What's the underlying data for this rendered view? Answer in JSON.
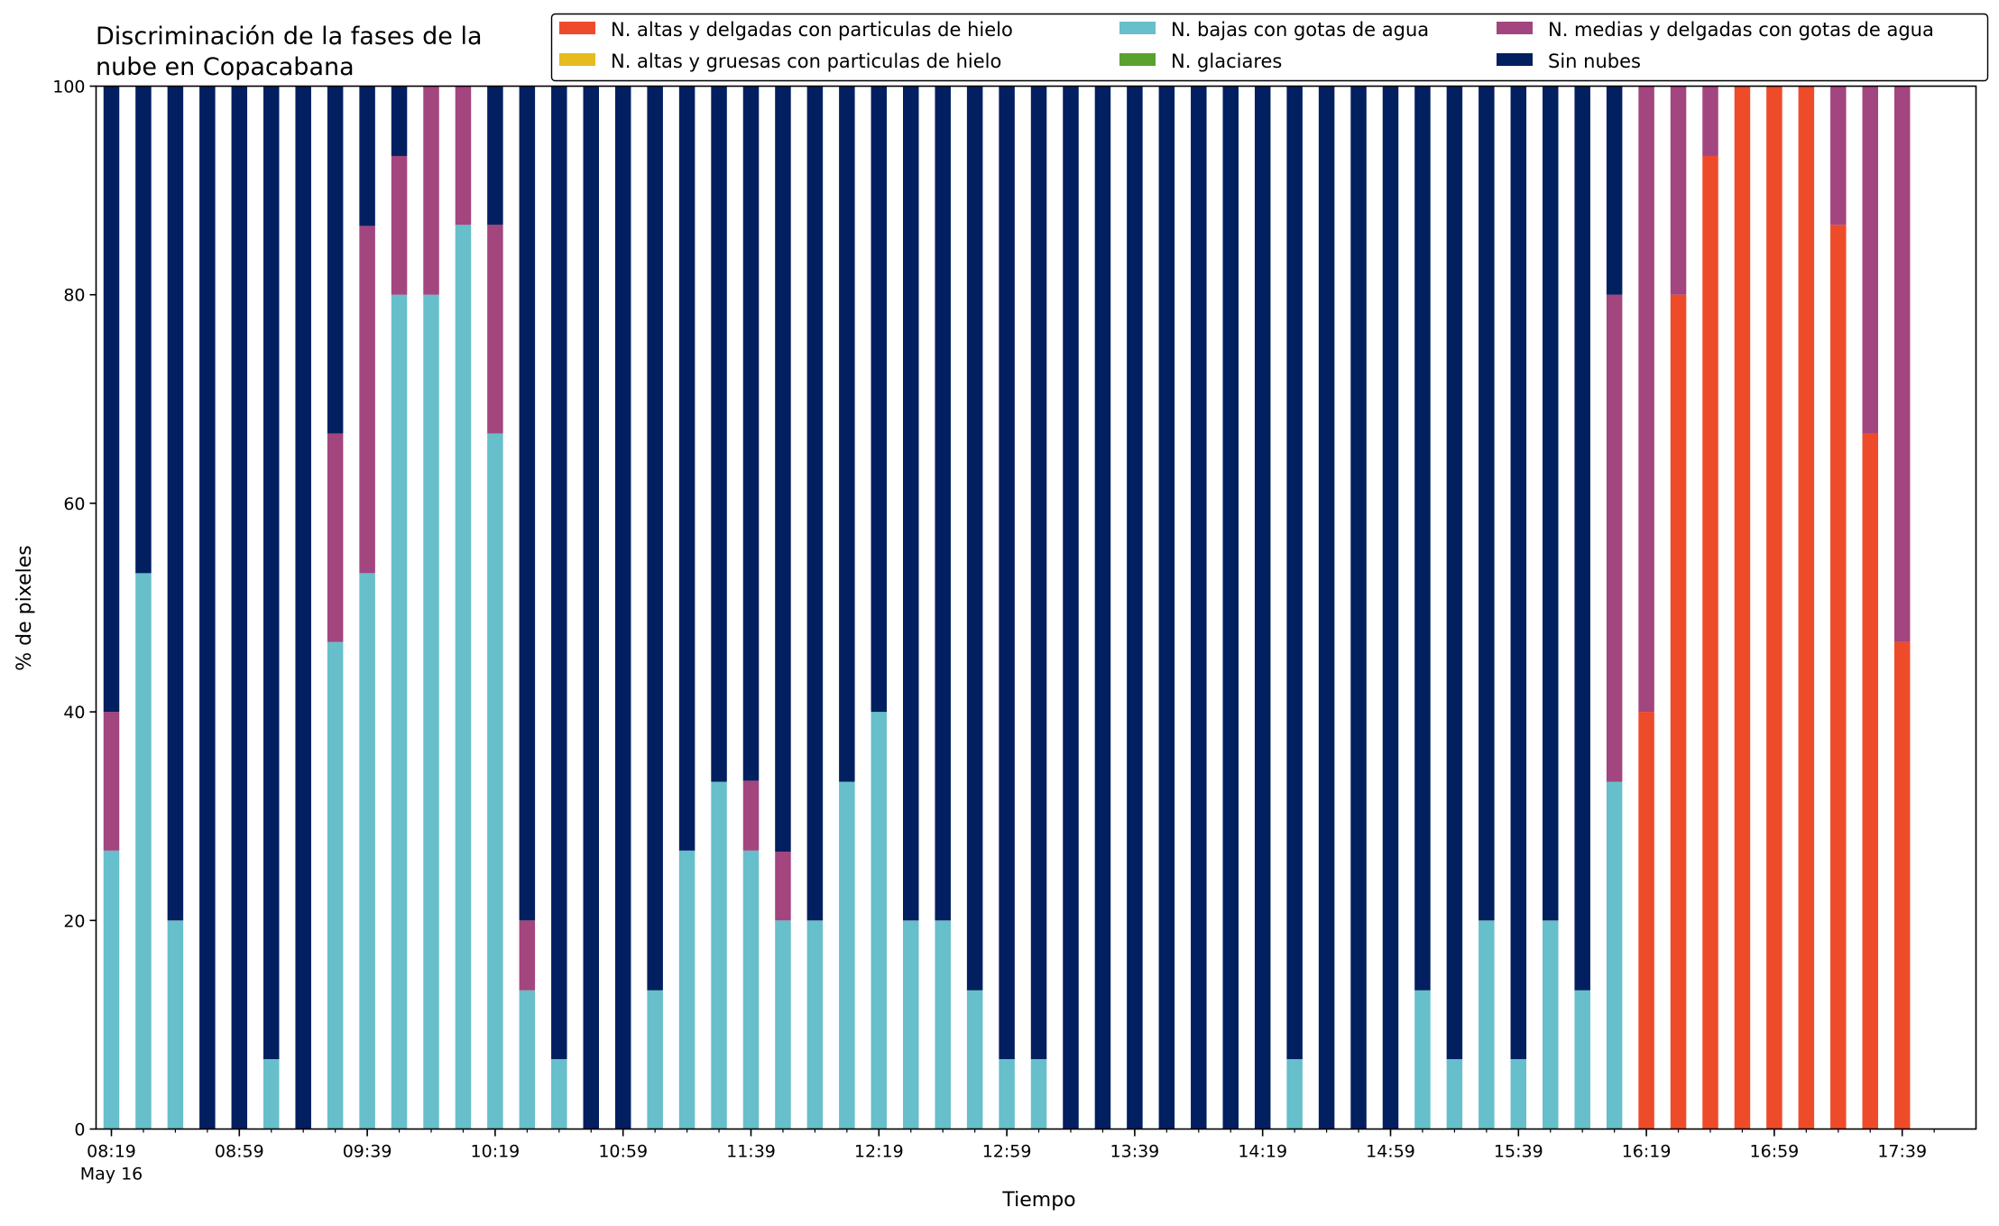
{
  "chart_data": {
    "type": "bar",
    "stacked": true,
    "title_lines": [
      "Discriminación de la fases de la",
      "nube en Copacabana"
    ],
    "xlabel": "Tiempo",
    "ylabel": "% de pixeles",
    "ylim": [
      0,
      100
    ],
    "yticks": [
      "0",
      "20",
      "40",
      "60",
      "80",
      "100"
    ],
    "xtick_labels": [
      "08:19",
      "08:59",
      "09:39",
      "10:19",
      "10:59",
      "11:39",
      "12:19",
      "12:59",
      "13:39",
      "14:19",
      "14:59",
      "15:39",
      "16:19",
      "16:59",
      "17:39"
    ],
    "x_date_label": "May 16",
    "grid": false,
    "legend_position": "top",
    "legend": [
      {
        "label": "N. altas y delgadas con particulas de hielo",
        "color": "#ee4b2b"
      },
      {
        "label": "N. altas y gruesas con particulas de hielo",
        "color": "#e6bb1e"
      },
      {
        "label": "N. bajas con gotas de agua",
        "color": "#66bfca"
      },
      {
        "label": "N. glaciares",
        "color": "#5ba12e"
      },
      {
        "label": "N. medias y delgadas con gotas de agua",
        "color": "#a3457e"
      },
      {
        "label": "Sin nubes",
        "color": "#021f60"
      }
    ],
    "categories": [
      "08:19",
      "08:29",
      "08:39",
      "08:49",
      "08:59",
      "09:09",
      "09:19",
      "09:29",
      "09:39",
      "09:49",
      "09:59",
      "10:09",
      "10:19",
      "10:29",
      "10:39",
      "10:49",
      "10:59",
      "11:09",
      "11:19",
      "11:29",
      "11:39",
      "11:49",
      "11:59",
      "12:09",
      "12:19",
      "12:29",
      "12:39",
      "12:49",
      "12:59",
      "13:09",
      "13:19",
      "13:29",
      "13:39",
      "13:49",
      "13:59",
      "14:09",
      "14:19",
      "14:29",
      "14:39",
      "14:49",
      "14:59",
      "15:09",
      "15:19",
      "15:29",
      "15:39",
      "15:49",
      "15:59",
      "16:09",
      "16:19",
      "16:29",
      "16:39",
      "16:49",
      "16:59",
      "17:09",
      "17:19",
      "17:29",
      "17:39"
    ],
    "series": [
      {
        "name": "N. altas y delgadas con particulas de hielo",
        "color": "#ee4b2b",
        "values": [
          0,
          0,
          0,
          0,
          0,
          0,
          0,
          0,
          0,
          0,
          0,
          0,
          0,
          0,
          0,
          0,
          0,
          0,
          0,
          0,
          0,
          0,
          0,
          0,
          0,
          0,
          0,
          0,
          0,
          0,
          0,
          0,
          0,
          0,
          0,
          0,
          0,
          0,
          0,
          0,
          0,
          0,
          0,
          0,
          0,
          0,
          0,
          0,
          40,
          80,
          93.3,
          100,
          100,
          100,
          86.7,
          66.7,
          46.7
        ]
      },
      {
        "name": "N. altas y gruesas con particulas de hielo",
        "color": "#e6bb1e",
        "values": [
          0,
          0,
          0,
          0,
          0,
          0,
          0,
          0,
          0,
          0,
          0,
          0,
          0,
          0,
          0,
          0,
          0,
          0,
          0,
          0,
          0,
          0,
          0,
          0,
          0,
          0,
          0,
          0,
          0,
          0,
          0,
          0,
          0,
          0,
          0,
          0,
          0,
          0,
          0,
          0,
          0,
          0,
          0,
          0,
          0,
          0,
          0,
          0,
          0,
          0,
          0,
          0,
          0,
          0,
          0,
          0,
          0
        ]
      },
      {
        "name": "N. bajas con gotas de agua",
        "color": "#66bfca",
        "values": [
          26.7,
          53.3,
          20,
          0,
          0,
          6.7,
          0,
          46.7,
          53.3,
          80,
          80,
          86.7,
          66.7,
          13.3,
          6.7,
          0,
          0,
          13.3,
          26.7,
          33.3,
          26.7,
          20,
          20,
          33.3,
          40,
          20,
          20,
          13.3,
          6.7,
          6.7,
          0,
          0,
          0,
          0,
          0,
          0,
          0,
          6.7,
          0,
          0,
          0,
          13.3,
          6.7,
          20,
          6.7,
          20,
          13.3,
          33.3,
          0,
          0,
          0,
          0,
          0,
          0,
          0,
          0,
          0
        ]
      },
      {
        "name": "N. glaciares",
        "color": "#5ba12e",
        "values": [
          0,
          0,
          0,
          0,
          0,
          0,
          0,
          0,
          0,
          0,
          0,
          0,
          0,
          0,
          0,
          0,
          0,
          0,
          0,
          0,
          0,
          0,
          0,
          0,
          0,
          0,
          0,
          0,
          0,
          0,
          0,
          0,
          0,
          0,
          0,
          0,
          0,
          0,
          0,
          0,
          0,
          0,
          0,
          0,
          0,
          0,
          0,
          0,
          0,
          0,
          0,
          0,
          0,
          0,
          0,
          0,
          0
        ]
      },
      {
        "name": "N. medias y delgadas con gotas de agua",
        "color": "#a3457e",
        "values": [
          13.3,
          0,
          0,
          0,
          0,
          0,
          0,
          20,
          33.3,
          13.3,
          20,
          13.3,
          20,
          6.7,
          0,
          0,
          0,
          0,
          0,
          0,
          6.7,
          6.6,
          0,
          0,
          0,
          0,
          0,
          0,
          0,
          0,
          0,
          0,
          0,
          0,
          0,
          0,
          0,
          0,
          0,
          0,
          0,
          0,
          0,
          0,
          0,
          0,
          0,
          46.7,
          60,
          20,
          6.7,
          0,
          0,
          0,
          13.3,
          33.3,
          53.3
        ]
      },
      {
        "name": "Sin nubes",
        "color": "#021f60",
        "values": [
          60,
          46.7,
          80,
          100,
          100,
          93.3,
          100,
          33.3,
          13.4,
          6.7,
          0,
          0,
          13.3,
          80,
          93.3,
          100,
          100,
          86.7,
          73.3,
          66.7,
          66.6,
          73.4,
          80,
          66.7,
          60,
          80,
          80,
          86.7,
          93.3,
          93.3,
          100,
          100,
          100,
          100,
          100,
          100,
          100,
          93.3,
          100,
          100,
          100,
          86.7,
          93.3,
          80,
          93.3,
          80,
          86.7,
          20,
          0,
          0,
          0,
          0,
          0,
          0,
          0,
          0,
          0
        ]
      }
    ]
  }
}
